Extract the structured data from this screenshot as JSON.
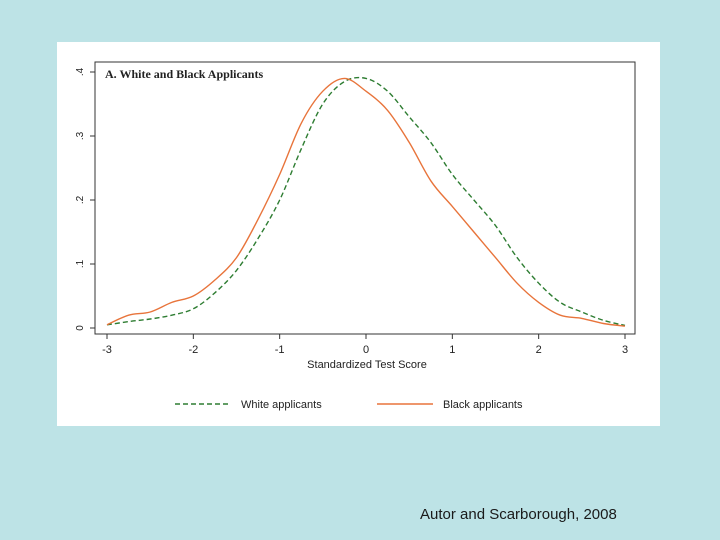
{
  "slide": {
    "citation": "Autor and Scarborough, 2008"
  },
  "chart_data": {
    "type": "line",
    "title": "A. White and Black Applicants",
    "xlabel": "Standardized Test Score",
    "ylabel": "",
    "xlim": [
      -3,
      3
    ],
    "ylim": [
      0,
      0.4
    ],
    "x_ticks": [
      -3,
      -2,
      -1,
      0,
      1,
      2,
      3
    ],
    "x_tick_labels": [
      "-3",
      "-2",
      "-1",
      "0",
      "1",
      "2",
      "3"
    ],
    "y_ticks": [
      0,
      0.1,
      0.2,
      0.3,
      0.4
    ],
    "y_tick_labels": [
      "0",
      ".1",
      ".2",
      ".3",
      ".4"
    ],
    "grid": false,
    "legend_position": "bottom",
    "x": [
      -3.0,
      -2.75,
      -2.5,
      -2.25,
      -2.0,
      -1.75,
      -1.5,
      -1.25,
      -1.0,
      -0.75,
      -0.5,
      -0.25,
      0.0,
      0.25,
      0.5,
      0.75,
      1.0,
      1.25,
      1.5,
      1.75,
      2.0,
      2.25,
      2.5,
      2.75,
      3.0
    ],
    "series": [
      {
        "name": "White applicants",
        "color": "#2e7d32",
        "style": "dashed",
        "values": [
          0.005,
          0.01,
          0.014,
          0.02,
          0.03,
          0.055,
          0.09,
          0.14,
          0.2,
          0.28,
          0.35,
          0.385,
          0.39,
          0.37,
          0.33,
          0.29,
          0.24,
          0.2,
          0.16,
          0.11,
          0.07,
          0.04,
          0.025,
          0.012,
          0.004
        ]
      },
      {
        "name": "Black applicants",
        "color": "#e8743b",
        "style": "solid",
        "values": [
          0.005,
          0.02,
          0.025,
          0.04,
          0.05,
          0.075,
          0.11,
          0.17,
          0.24,
          0.32,
          0.37,
          0.39,
          0.37,
          0.34,
          0.29,
          0.23,
          0.19,
          0.15,
          0.11,
          0.07,
          0.04,
          0.02,
          0.015,
          0.007,
          0.003
        ]
      }
    ]
  }
}
